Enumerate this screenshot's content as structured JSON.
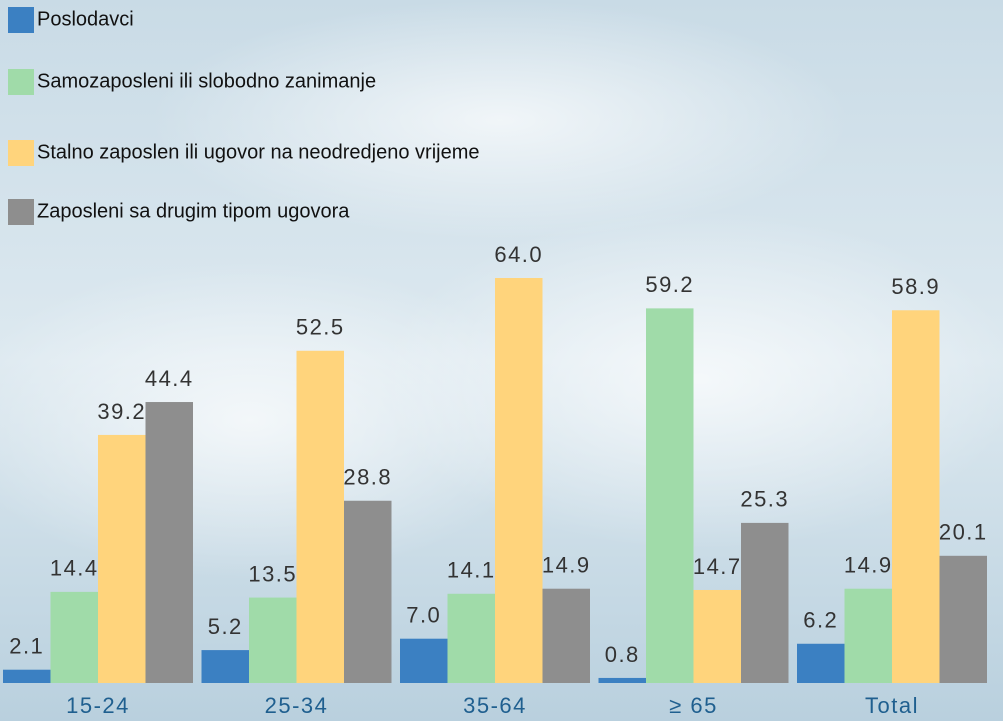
{
  "chart_data": {
    "type": "bar",
    "categories": [
      "15-24",
      "25-34",
      "35-64",
      "≥ 65",
      "Total"
    ],
    "series": [
      {
        "name": "Poslodavci",
        "color": "#3b80c2",
        "values": [
          2.1,
          5.2,
          7.0,
          0.8,
          6.2
        ],
        "value_labels": [
          "2.1",
          "5.2",
          "7.0",
          "0.8",
          "6.2"
        ]
      },
      {
        "name": "Samozaposleni ili slobodno zanimanje",
        "color": "#a0dba9",
        "values": [
          14.4,
          13.5,
          14.1,
          59.2,
          14.9
        ],
        "value_labels": [
          "14.4",
          "13.5",
          "14.1",
          "59.2",
          "14.9"
        ]
      },
      {
        "name": "Stalno zaposlen ili ugovor na neodredjeno vrijeme",
        "color": "#ffd47c",
        "values": [
          39.2,
          52.5,
          64.0,
          14.7,
          58.9
        ],
        "value_labels": [
          "39.2",
          "52.5",
          "64.0",
          "14.7",
          "58.9"
        ]
      },
      {
        "name": "Zaposleni sa drugim tipom ugovora",
        "color": "#8e8e8e",
        "values": [
          44.4,
          28.8,
          14.9,
          25.3,
          20.1
        ],
        "value_labels": [
          "44.4",
          "28.8",
          "14.9",
          "25.3",
          "20.1"
        ]
      }
    ]
  }
}
